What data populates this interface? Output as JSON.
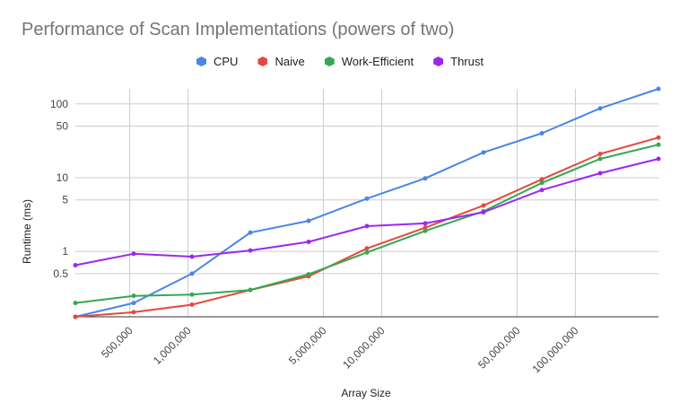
{
  "chart_data": {
    "type": "line",
    "title": "Performance of Scan Implementations (powers of two)",
    "xlabel": "Array Size",
    "ylabel": "Runtime (ms)",
    "x_scale": "log",
    "y_scale": "log",
    "xlim": [
      262144,
      268435456
    ],
    "ylim": [
      0.13,
      160
    ],
    "x_ticks": [
      {
        "value": 500000,
        "label": "500,000"
      },
      {
        "value": 1000000,
        "label": "1,000,000"
      },
      {
        "value": 5000000,
        "label": "5,000,000"
      },
      {
        "value": 10000000,
        "label": "10,000,000"
      },
      {
        "value": 50000000,
        "label": "50,000,000"
      },
      {
        "value": 100000000,
        "label": "100,000,000"
      }
    ],
    "y_ticks": [
      {
        "value": 0.5,
        "label": "0.5"
      },
      {
        "value": 1,
        "label": "1"
      },
      {
        "value": 5,
        "label": "5"
      },
      {
        "value": 10,
        "label": "10"
      },
      {
        "value": 50,
        "label": "50"
      },
      {
        "value": 100,
        "label": "100"
      }
    ],
    "grid": true,
    "legend_position": "top",
    "x": [
      262144,
      524288,
      1048576,
      2097152,
      4194304,
      8388608,
      16777216,
      33554432,
      67108864,
      134217728,
      268435456
    ],
    "series": [
      {
        "name": "CPU",
        "color": "#4a86e8",
        "values": [
          0.13,
          0.2,
          0.5,
          1.8,
          2.6,
          5.2,
          9.8,
          22,
          40,
          87,
          160
        ]
      },
      {
        "name": "Naive",
        "color": "#e34a3f",
        "values": [
          0.13,
          0.15,
          0.19,
          0.3,
          0.46,
          1.1,
          2.1,
          4.2,
          9.5,
          21,
          35
        ]
      },
      {
        "name": "Work-Efficient",
        "color": "#34a853",
        "values": [
          0.2,
          0.25,
          0.26,
          0.3,
          0.49,
          0.97,
          1.9,
          3.5,
          8.5,
          18,
          28
        ]
      },
      {
        "name": "Thrust",
        "color": "#9c27f0",
        "values": [
          0.65,
          0.93,
          0.85,
          1.03,
          1.35,
          2.2,
          2.4,
          3.4,
          6.8,
          11.5,
          18
        ]
      }
    ]
  }
}
